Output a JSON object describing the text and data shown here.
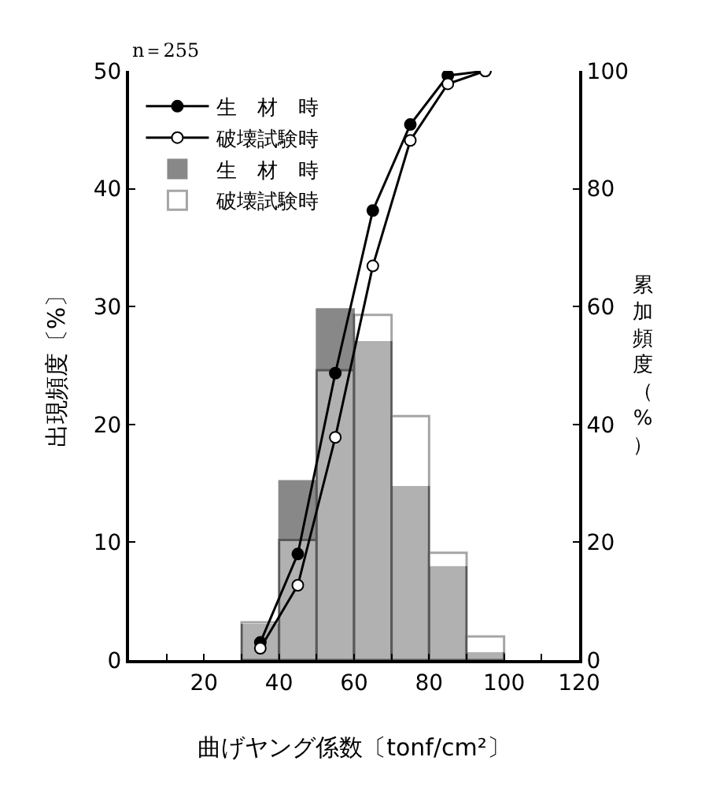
{
  "chart_data": {
    "type": "bar",
    "xlabel": "曲げヤング係数〔tonf/cm²〕",
    "ylabel": "出現頻度〔%〕",
    "y2label": "累加頻度（%）",
    "annotations": [
      "n＝255"
    ],
    "x": [
      35,
      45,
      55,
      65,
      75,
      85,
      95
    ],
    "series": [
      {
        "name": "生　材　時",
        "color": "#888888",
        "values": [
          3.0,
          15.2,
          29.8,
          27.0,
          14.7,
          7.9,
          0.6
        ]
      },
      {
        "name": "破壊試験時",
        "color": "#ffffff",
        "values": [
          3.2,
          10.2,
          24.6,
          29.3,
          20.7,
          9.1,
          2.0
        ]
      },
      {
        "name": "生　材　時",
        "type": "line",
        "axis": "y2",
        "color": "#000000",
        "values": [
          3,
          18,
          48.7,
          76.3,
          90.9,
          99.2,
          100
        ]
      },
      {
        "name": "破壊試験時",
        "type": "line",
        "axis": "y2",
        "color": "#000000",
        "values": [
          2,
          12.7,
          37.8,
          66.9,
          88.2,
          97.8,
          100
        ]
      }
    ],
    "xlim": [
      0,
      120
    ],
    "xticks": [
      {
        "value": 10,
        "label": null
      },
      20,
      {
        "value": 30,
        "label": null
      },
      40,
      {
        "value": 50,
        "label": null
      },
      60,
      {
        "value": 70,
        "label": null
      },
      80,
      {
        "value": 90,
        "label": null
      },
      100,
      {
        "value": 110,
        "label": null
      },
      120
    ],
    "ylim": [
      0,
      50
    ],
    "yticks": [
      0,
      10,
      20,
      30,
      40,
      50
    ],
    "y2lim": [
      0,
      100
    ],
    "y2ticks": [
      0,
      20,
      40,
      60,
      80,
      100
    ],
    "legend": "top left",
    "marker": "circle",
    "grid": false
  }
}
